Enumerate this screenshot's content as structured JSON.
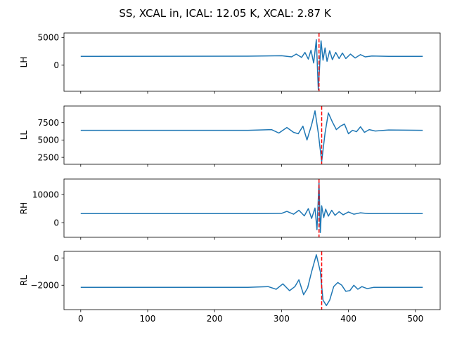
{
  "title": "SS, XCAL in, ICAL: 12.05 K, XCAL: 2.87 K",
  "colors": {
    "series": "#1f77b4",
    "marker": "#ff0000",
    "axes": "#000000",
    "background": "#ffffff"
  },
  "chart_data": [
    {
      "type": "line",
      "ylabel": "LH",
      "xlim": [
        -25,
        537
      ],
      "ylim": [
        -4700,
        5800
      ],
      "yticks": [
        0,
        5000
      ],
      "ytick_labels": [
        "0",
        "5000"
      ],
      "baseline": 1600,
      "vline_x": 356,
      "vline_style": "dashed",
      "x": [
        0,
        250,
        300,
        315,
        322,
        330,
        335,
        340,
        344,
        348,
        352,
        355,
        357,
        359,
        362,
        365,
        368,
        372,
        376,
        381,
        386,
        391,
        396,
        403,
        410,
        418,
        425,
        435,
        460,
        511
      ],
      "values": [
        1600,
        1620,
        1700,
        1500,
        2000,
        1400,
        2300,
        1100,
        2700,
        400,
        4600,
        -4400,
        -200,
        4400,
        900,
        3100,
        700,
        2600,
        1000,
        2300,
        1200,
        2200,
        1200,
        2000,
        1300,
        1900,
        1500,
        1650,
        1600,
        1600
      ]
    },
    {
      "type": "line",
      "ylabel": "LL",
      "xlim": [
        -25,
        537
      ],
      "ylim": [
        1500,
        9900
      ],
      "yticks": [
        2500,
        5000,
        7500
      ],
      "ytick_labels": [
        "2500",
        "5000",
        "7500"
      ],
      "baseline": 6400,
      "vline_x": 360,
      "vline_style": "dashed",
      "x": [
        0,
        250,
        285,
        296,
        308,
        318,
        325,
        332,
        338,
        345,
        350,
        355,
        360,
        365,
        370,
        376,
        382,
        388,
        394,
        400,
        406,
        412,
        418,
        424,
        431,
        440,
        460,
        511
      ],
      "values": [
        6400,
        6400,
        6500,
        6000,
        6800,
        6100,
        5900,
        7000,
        5000,
        7200,
        9200,
        6000,
        1900,
        6000,
        8900,
        7600,
        6500,
        7000,
        7300,
        5900,
        6400,
        6200,
        6900,
        6100,
        6500,
        6300,
        6450,
        6400
      ]
    },
    {
      "type": "line",
      "ylabel": "RH",
      "xlim": [
        -25,
        537
      ],
      "ylim": [
        -5200,
        15500
      ],
      "yticks": [
        0,
        10000
      ],
      "ytick_labels": [
        "0",
        "10000"
      ],
      "baseline": 3200,
      "vline_x": 356,
      "vline_style": "dashed",
      "x": [
        0,
        260,
        300,
        308,
        318,
        326,
        334,
        340,
        345,
        350,
        353,
        356,
        358,
        360,
        363,
        366,
        370,
        375,
        380,
        386,
        392,
        400,
        408,
        418,
        430,
        460,
        511
      ],
      "values": [
        3200,
        3200,
        3300,
        4000,
        3000,
        4400,
        2400,
        5000,
        1500,
        5200,
        -2500,
        14500,
        -3500,
        6000,
        1800,
        4800,
        2300,
        4400,
        2600,
        3900,
        2800,
        3800,
        3000,
        3500,
        3200,
        3250,
        3200
      ]
    },
    {
      "type": "line",
      "ylabel": "RL",
      "xlim": [
        -25,
        537
      ],
      "ylim": [
        -3800,
        500
      ],
      "yticks": [
        -2000,
        0
      ],
      "ytick_labels": [
        "−2000",
        "0"
      ],
      "baseline": -2150,
      "vline_x": 360,
      "vline_style": "dashed",
      "x": [
        0,
        250,
        280,
        292,
        302,
        312,
        320,
        326,
        333,
        339,
        345,
        352,
        358,
        362,
        367,
        372,
        378,
        384,
        390,
        396,
        402,
        408,
        414,
        420,
        428,
        438,
        460,
        511
      ],
      "values": [
        -2150,
        -2150,
        -2100,
        -2300,
        -1900,
        -2400,
        -2100,
        -1600,
        -2700,
        -2200,
        -1000,
        250,
        -1000,
        -3100,
        -3500,
        -3100,
        -2100,
        -1800,
        -2000,
        -2450,
        -2400,
        -2000,
        -2300,
        -2100,
        -2250,
        -2150,
        -2150,
        -2150
      ]
    }
  ],
  "xaxis": {
    "ticks": [
      0,
      100,
      200,
      300,
      400,
      500
    ],
    "tick_labels": [
      "0",
      "100",
      "200",
      "300",
      "400",
      "500"
    ]
  }
}
